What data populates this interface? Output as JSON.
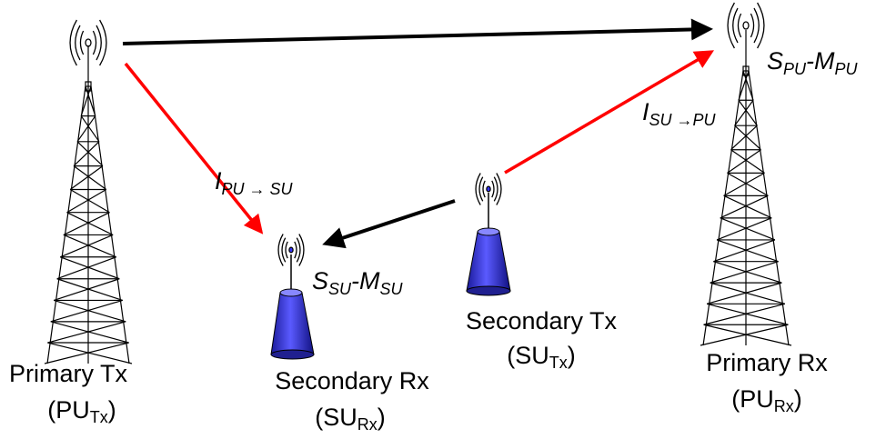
{
  "nodes": {
    "primary_tx": {
      "name": "Primary Tx",
      "abbr": "(PU",
      "sub": "Tx",
      "close": ")"
    },
    "secondary_rx": {
      "name": "Secondary Rx",
      "abbr": "(SU",
      "sub": "Rx",
      "close": ")"
    },
    "secondary_tx": {
      "name": "Secondary Tx",
      "abbr": "(SU",
      "sub": "Tx",
      "close": ")"
    },
    "primary_rx": {
      "name": "Primary Rx",
      "abbr": "(PU",
      "sub": "Rx",
      "close": ")"
    }
  },
  "links": {
    "interference_pu_su": {
      "main": "I",
      "sub": "PU → SU"
    },
    "interference_su_pu": {
      "main": "I",
      "sub": "SU →PU"
    }
  },
  "signals": {
    "secondary": {
      "s": "S",
      "s_sub": "SU",
      "m": "-M",
      "m_sub": "SU"
    },
    "primary": {
      "s": "S",
      "s_sub": "PU",
      "m": "-M",
      "m_sub": "PU"
    }
  }
}
